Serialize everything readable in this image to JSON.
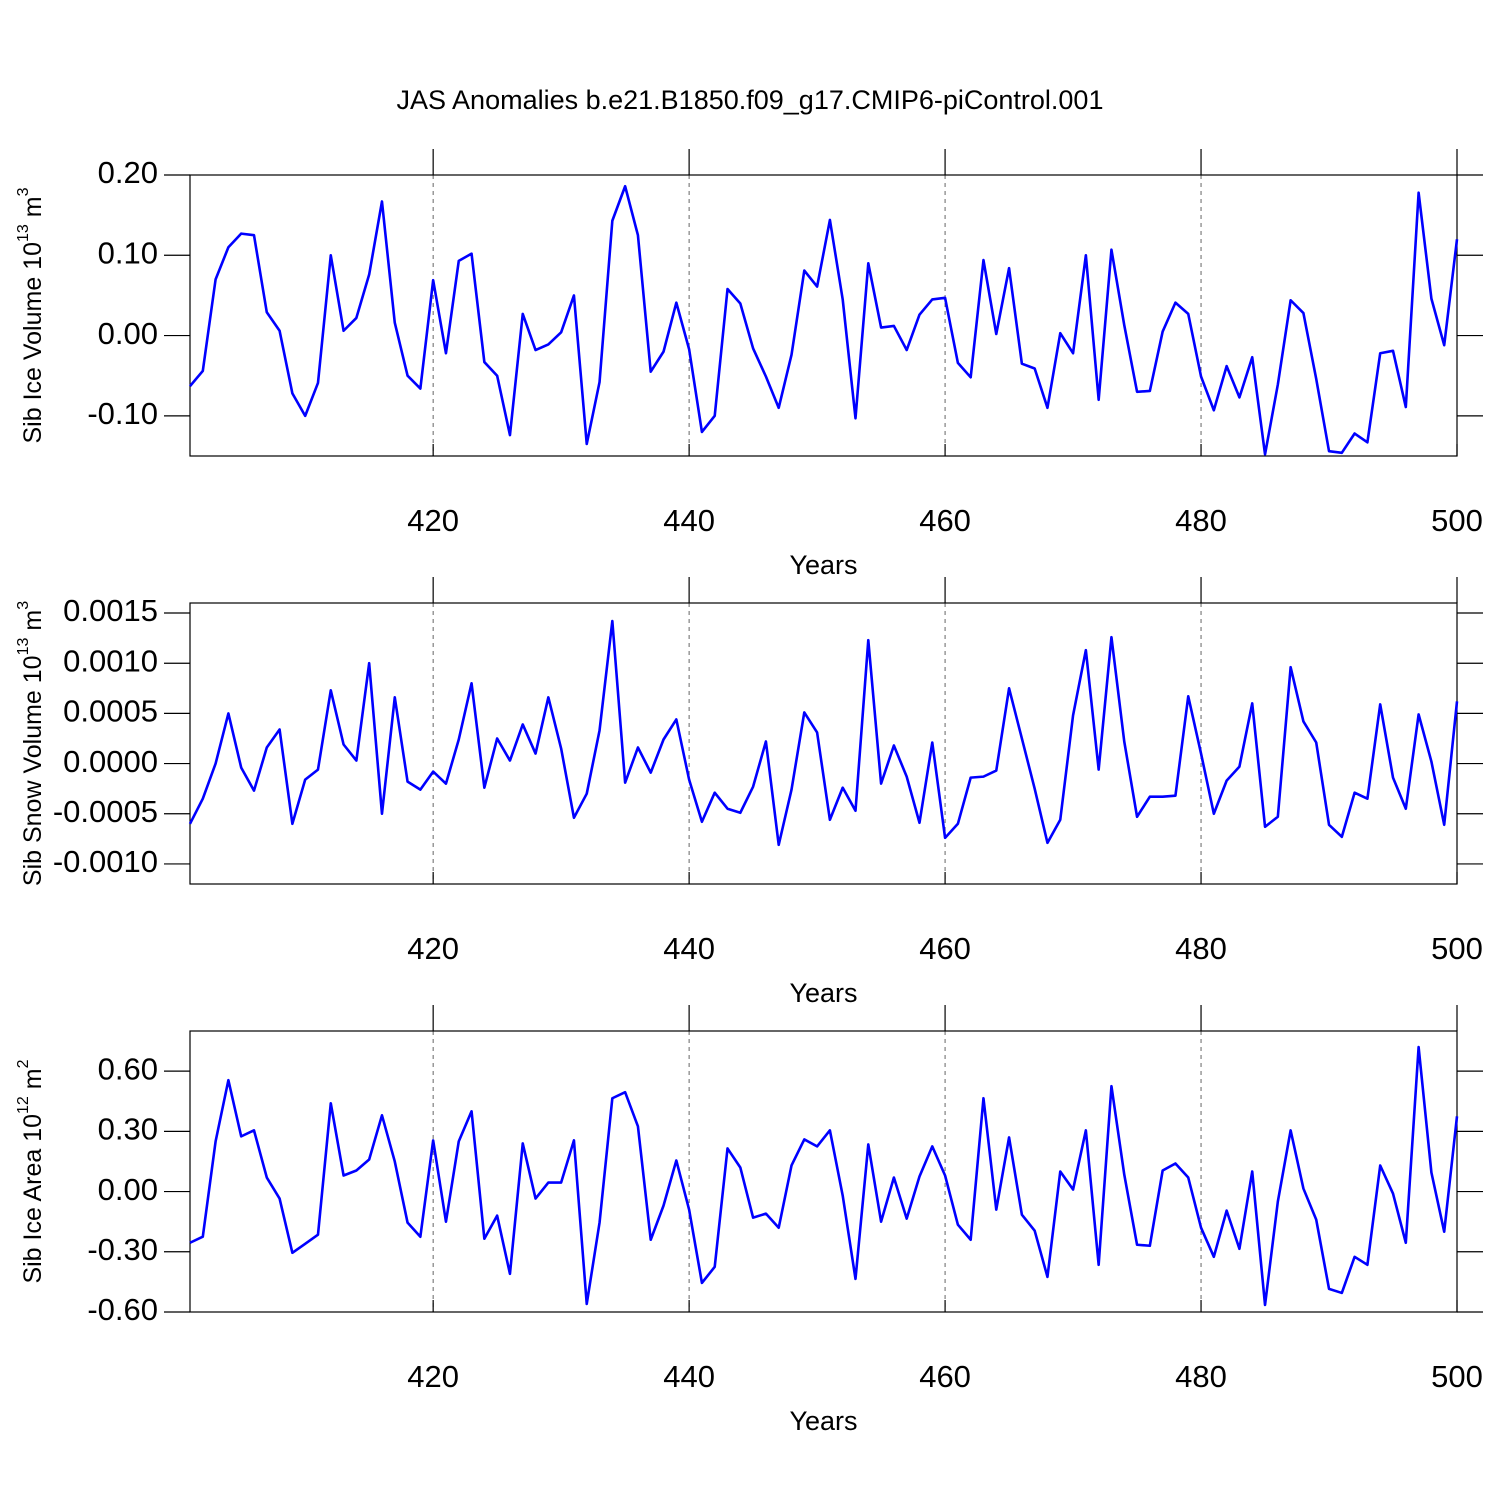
{
  "chart_data": [
    {
      "type": "line",
      "title": "JAS Anomalies b.e21.B1850.f09_g17.CMIP6-piControl.001",
      "ylabel": "Sib Ice Volume 10",
      "ylabel_exp": "13",
      "ylabel_unit": "m",
      "ylabel_unit_exp": "3",
      "xlabel": "Years",
      "color": "#0000ff",
      "grid": true,
      "xlim": [
        401,
        500
      ],
      "xticks": [
        420,
        440,
        460,
        480,
        500
      ],
      "ylim": [
        -0.15,
        0.2
      ],
      "yticks": [
        {
          "value": -0.1,
          "label": "-0.10"
        },
        {
          "value": 0,
          "label": "0.00"
        },
        {
          "value": 0.1,
          "label": "0.10"
        },
        {
          "value": 0.2,
          "label": "0.20"
        }
      ],
      "x": [
        401,
        402,
        403,
        404,
        405,
        406,
        407,
        408,
        409,
        410,
        411,
        412,
        413,
        414,
        415,
        416,
        417,
        418,
        419,
        420,
        421,
        422,
        423,
        424,
        425,
        426,
        427,
        428,
        429,
        430,
        431,
        432,
        433,
        434,
        435,
        436,
        437,
        438,
        439,
        440,
        441,
        442,
        443,
        444,
        445,
        446,
        447,
        448,
        449,
        450,
        451,
        452,
        453,
        454,
        455,
        456,
        457,
        458,
        459,
        460,
        461,
        462,
        463,
        464,
        465,
        466,
        467,
        468,
        469,
        470,
        471,
        472,
        473,
        474,
        475,
        476,
        477,
        478,
        479,
        480,
        481,
        482,
        483,
        484,
        485,
        486,
        487,
        488,
        489,
        490,
        491,
        492,
        493,
        494,
        495,
        496,
        497,
        498,
        499,
        500
      ],
      "values": [
        -0.063,
        -0.044,
        0.07,
        0.11,
        0.127,
        0.125,
        0.029,
        0.006,
        -0.072,
        -0.1,
        -0.059,
        0.1,
        0.006,
        0.022,
        0.076,
        0.167,
        0.016,
        -0.05,
        -0.066,
        0.069,
        -0.022,
        0.093,
        0.102,
        -0.033,
        -0.05,
        -0.124,
        0.027,
        -0.018,
        -0.011,
        0.004,
        0.05,
        -0.135,
        -0.058,
        0.143,
        0.186,
        0.125,
        -0.045,
        -0.02,
        0.041,
        -0.017,
        -0.12,
        -0.1,
        0.058,
        0.04,
        -0.016,
        -0.051,
        -0.09,
        -0.024,
        0.081,
        0.061,
        0.144,
        0.045,
        -0.103,
        0.09,
        0.01,
        0.012,
        -0.018,
        0.026,
        0.045,
        0.047,
        -0.034,
        -0.052,
        0.094,
        0.002,
        0.084,
        -0.035,
        -0.041,
        -0.09,
        0.003,
        -0.022,
        0.1,
        -0.08,
        0.107,
        0.013,
        -0.07,
        -0.069,
        0.005,
        0.041,
        0.027,
        -0.051,
        -0.093,
        -0.038,
        -0.077,
        -0.027,
        -0.148,
        -0.061,
        0.044,
        0.028,
        -0.054,
        -0.144,
        -0.146,
        -0.122,
        -0.133,
        -0.022,
        -0.019,
        -0.089,
        0.178,
        0.046,
        -0.012,
        0.12
      ]
    },
    {
      "type": "line",
      "ylabel": "Sib Snow Volume 10",
      "ylabel_exp": "13",
      "ylabel_unit": "m",
      "ylabel_unit_exp": "3",
      "xlabel": "Years",
      "color": "#0000ff",
      "grid": true,
      "xlim": [
        401,
        500
      ],
      "xticks": [
        420,
        440,
        460,
        480,
        500
      ],
      "ylim": [
        -0.0012,
        0.0016
      ],
      "yticks": [
        {
          "value": -0.001,
          "label": "-0.0010"
        },
        {
          "value": -0.0005,
          "label": "-0.0005"
        },
        {
          "value": 0,
          "label": "0.0000"
        },
        {
          "value": 0.0005,
          "label": "0.0005"
        },
        {
          "value": 0.001,
          "label": "0.0010"
        },
        {
          "value": 0.0015,
          "label": "0.0015"
        }
      ],
      "x": [
        401,
        402,
        403,
        404,
        405,
        406,
        407,
        408,
        409,
        410,
        411,
        412,
        413,
        414,
        415,
        416,
        417,
        418,
        419,
        420,
        421,
        422,
        423,
        424,
        425,
        426,
        427,
        428,
        429,
        430,
        431,
        432,
        433,
        434,
        435,
        436,
        437,
        438,
        439,
        440,
        441,
        442,
        443,
        444,
        445,
        446,
        447,
        448,
        449,
        450,
        451,
        452,
        453,
        454,
        455,
        456,
        457,
        458,
        459,
        460,
        461,
        462,
        463,
        464,
        465,
        466,
        467,
        468,
        469,
        470,
        471,
        472,
        473,
        474,
        475,
        476,
        477,
        478,
        479,
        480,
        481,
        482,
        483,
        484,
        485,
        486,
        487,
        488,
        489,
        490,
        491,
        492,
        493,
        494,
        495,
        496,
        497,
        498,
        499,
        500
      ],
      "values": [
        -0.0006,
        -0.00035,
        0.0,
        0.0005,
        -4e-05,
        -0.00027,
        0.00016,
        0.00034,
        -0.0006,
        -0.00016,
        -6e-05,
        0.00073,
        0.00019,
        3e-05,
        0.001,
        -0.0005,
        0.00066,
        -0.00018,
        -0.00026,
        -8e-05,
        -0.0002,
        0.00024,
        0.0008,
        -0.00024,
        0.00025,
        3e-05,
        0.00039,
        0.0001,
        0.00066,
        0.00015,
        -0.00054,
        -0.0003,
        0.00033,
        0.00142,
        -0.00019,
        0.00016,
        -9e-05,
        0.00024,
        0.00044,
        -0.00016,
        -0.00058,
        -0.00029,
        -0.00045,
        -0.00049,
        -0.00023,
        0.00022,
        -0.00081,
        -0.00026,
        0.00051,
        0.00031,
        -0.00056,
        -0.00024,
        -0.00047,
        0.00123,
        -0.0002,
        0.00018,
        -0.00013,
        -0.00059,
        0.00021,
        -0.00074,
        -0.0006,
        -0.00014,
        -0.00013,
        -7e-05,
        0.00075,
        0.00025,
        -0.00025,
        -0.00079,
        -0.00056,
        0.00048,
        0.00113,
        -6e-05,
        0.00126,
        0.00022,
        -0.00053,
        -0.00033,
        -0.00033,
        -0.00032,
        0.00067,
        0.0001,
        -0.0005,
        -0.00017,
        -3e-05,
        0.0006,
        -0.00063,
        -0.00053,
        0.00096,
        0.00042,
        0.00021,
        -0.00061,
        -0.00073,
        -0.00029,
        -0.00035,
        0.00059,
        -0.00014,
        -0.00045,
        0.00049,
        2e-05,
        -0.00061,
        0.00062
      ]
    },
    {
      "type": "line",
      "ylabel": "Sib Ice Area 10",
      "ylabel_exp": "12",
      "ylabel_unit": "m",
      "ylabel_unit_exp": "2",
      "xlabel": "Years",
      "color": "#0000ff",
      "grid": true,
      "xlim": [
        401,
        500
      ],
      "xticks": [
        420,
        440,
        460,
        480,
        500
      ],
      "ylim": [
        -0.6,
        0.8
      ],
      "yticks": [
        {
          "value": -0.6,
          "label": "-0.60"
        },
        {
          "value": -0.3,
          "label": "-0.30"
        },
        {
          "value": 0,
          "label": "0.00"
        },
        {
          "value": 0.3,
          "label": "0.30"
        },
        {
          "value": 0.6,
          "label": "0.60"
        }
      ],
      "x": [
        401,
        402,
        403,
        404,
        405,
        406,
        407,
        408,
        409,
        410,
        411,
        412,
        413,
        414,
        415,
        416,
        417,
        418,
        419,
        420,
        421,
        422,
        423,
        424,
        425,
        426,
        427,
        428,
        429,
        430,
        431,
        432,
        433,
        434,
        435,
        436,
        437,
        438,
        439,
        440,
        441,
        442,
        443,
        444,
        445,
        446,
        447,
        448,
        449,
        450,
        451,
        452,
        453,
        454,
        455,
        456,
        457,
        458,
        459,
        460,
        461,
        462,
        463,
        464,
        465,
        466,
        467,
        468,
        469,
        470,
        471,
        472,
        473,
        474,
        475,
        476,
        477,
        478,
        479,
        480,
        481,
        482,
        483,
        484,
        485,
        486,
        487,
        488,
        489,
        490,
        491,
        492,
        493,
        494,
        495,
        496,
        497,
        498,
        499,
        500
      ],
      "values": [
        -0.255,
        -0.225,
        0.25,
        0.555,
        0.275,
        0.305,
        0.07,
        -0.035,
        -0.305,
        -0.26,
        -0.215,
        0.44,
        0.08,
        0.105,
        0.16,
        0.38,
        0.15,
        -0.155,
        -0.225,
        0.255,
        -0.15,
        0.25,
        0.4,
        -0.235,
        -0.12,
        -0.41,
        0.24,
        -0.035,
        0.045,
        0.045,
        0.255,
        -0.56,
        -0.155,
        0.465,
        0.495,
        0.325,
        -0.24,
        -0.07,
        0.155,
        -0.09,
        -0.455,
        -0.375,
        0.215,
        0.12,
        -0.13,
        -0.11,
        -0.18,
        0.13,
        0.26,
        0.225,
        0.305,
        -0.02,
        -0.435,
        0.235,
        -0.15,
        0.07,
        -0.135,
        0.075,
        0.225,
        0.08,
        -0.165,
        -0.24,
        0.465,
        -0.09,
        0.27,
        -0.115,
        -0.195,
        -0.425,
        0.1,
        0.01,
        0.305,
        -0.365,
        0.525,
        0.085,
        -0.265,
        -0.27,
        0.105,
        0.14,
        0.07,
        -0.18,
        -0.325,
        -0.095,
        -0.285,
        0.1,
        -0.565,
        -0.05,
        0.305,
        0.015,
        -0.14,
        -0.485,
        -0.505,
        -0.325,
        -0.365,
        0.13,
        -0.01,
        -0.255,
        0.72,
        0.095,
        -0.2,
        0.375
      ]
    }
  ]
}
